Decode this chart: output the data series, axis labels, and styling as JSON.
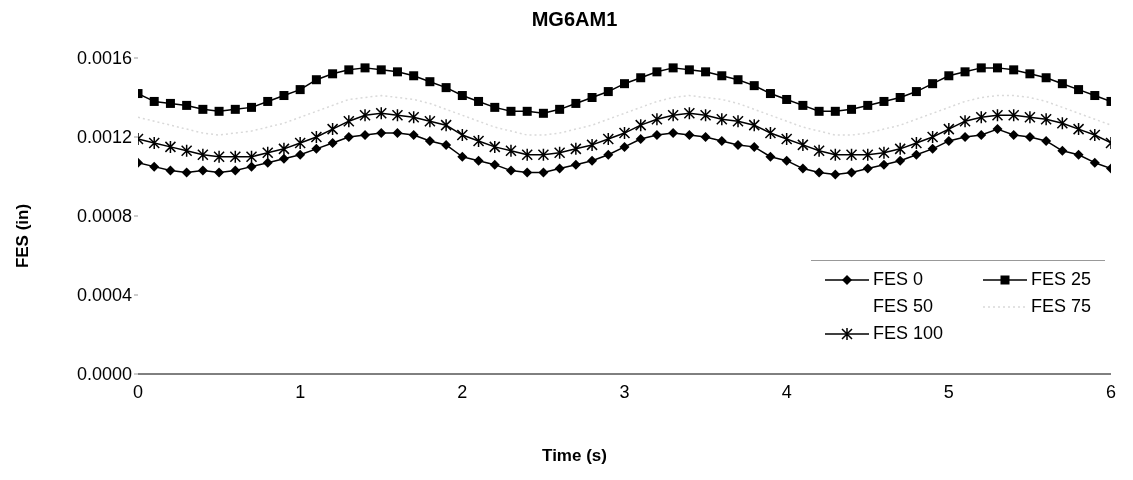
{
  "chart_data": {
    "type": "line",
    "title": "MG6AM1",
    "xlabel": "Time (s)",
    "ylabel": "FES (in)",
    "x": [
      0,
      0.1,
      0.2,
      0.3,
      0.4,
      0.5,
      0.6,
      0.7,
      0.8,
      0.9,
      1,
      1.1,
      1.2,
      1.3,
      1.4,
      1.5,
      1.6,
      1.7,
      1.8,
      1.9,
      2,
      2.1,
      2.2,
      2.3,
      2.4,
      2.5,
      2.6,
      2.7,
      2.8,
      2.9,
      3,
      3.1,
      3.2,
      3.3,
      3.4,
      3.5,
      3.6,
      3.7,
      3.8,
      3.9,
      4,
      4.1,
      4.2,
      4.3,
      4.4,
      4.5,
      4.6,
      4.7,
      4.8,
      4.9,
      5,
      5.1,
      5.2,
      5.3,
      5.4,
      5.5,
      5.6,
      5.7,
      5.8,
      5.9,
      6
    ],
    "xlim": [
      0,
      6
    ],
    "xticks": [
      0,
      1,
      2,
      3,
      4,
      5,
      6
    ],
    "ylim": [
      0,
      0.0016
    ],
    "yticks": [
      {
        "value": 0,
        "label": "0.0000"
      },
      {
        "value": 0.0004,
        "label": "0.0004"
      },
      {
        "value": 0.0008,
        "label": "0.0008"
      },
      {
        "value": 0.0012,
        "label": "0.0012"
      },
      {
        "value": 0.0016,
        "label": "0.0016"
      }
    ],
    "grid": false,
    "legend": "bottom right",
    "line_style": "solid",
    "series": [
      {
        "name": "FES 0",
        "color": "#000000",
        "marker": "diamond",
        "values": [
          0.00107,
          0.00105,
          0.00103,
          0.00102,
          0.00103,
          0.00102,
          0.00103,
          0.00105,
          0.00107,
          0.00109,
          0.00111,
          0.00114,
          0.00117,
          0.0012,
          0.00121,
          0.00122,
          0.00122,
          0.00121,
          0.00118,
          0.00116,
          0.0011,
          0.00108,
          0.00106,
          0.00103,
          0.00102,
          0.00102,
          0.00104,
          0.00106,
          0.00108,
          0.00111,
          0.00115,
          0.00119,
          0.00121,
          0.00122,
          0.00121,
          0.0012,
          0.00118,
          0.00116,
          0.00115,
          0.0011,
          0.00108,
          0.00104,
          0.00102,
          0.00101,
          0.00102,
          0.00104,
          0.00106,
          0.00108,
          0.00111,
          0.00114,
          0.00118,
          0.0012,
          0.00121,
          0.00124,
          0.00121,
          0.0012,
          0.00118,
          0.00113,
          0.00111,
          0.00107,
          0.00104
        ]
      },
      {
        "name": "FES 25",
        "color": "#000000",
        "marker": "square",
        "values": [
          0.00142,
          0.00138,
          0.00137,
          0.00136,
          0.00134,
          0.00133,
          0.00134,
          0.00135,
          0.00138,
          0.00141,
          0.00144,
          0.00149,
          0.00152,
          0.00154,
          0.00155,
          0.00154,
          0.00153,
          0.00151,
          0.00148,
          0.00145,
          0.00141,
          0.00138,
          0.00135,
          0.00133,
          0.00133,
          0.00132,
          0.00134,
          0.00137,
          0.0014,
          0.00143,
          0.00147,
          0.0015,
          0.00153,
          0.00155,
          0.00154,
          0.00153,
          0.00151,
          0.00149,
          0.00146,
          0.00142,
          0.00139,
          0.00136,
          0.00133,
          0.00133,
          0.00134,
          0.00136,
          0.00138,
          0.0014,
          0.00143,
          0.00147,
          0.00151,
          0.00153,
          0.00155,
          0.00155,
          0.00154,
          0.00152,
          0.0015,
          0.00147,
          0.00144,
          0.00141,
          0.00138
        ]
      },
      {
        "name": "FES 50",
        "marker": "none",
        "values": [
          null,
          null,
          null,
          null,
          null,
          null,
          null,
          null,
          null,
          null,
          null,
          null,
          null,
          null,
          null,
          null,
          null,
          null,
          null,
          null,
          null,
          null,
          null,
          null,
          null,
          null,
          null,
          null,
          null,
          null,
          null,
          null,
          null,
          null,
          null,
          null,
          null,
          null,
          null,
          null,
          null,
          null,
          null,
          null,
          null,
          null,
          null,
          null,
          null,
          null,
          null,
          null,
          null,
          null,
          null,
          null,
          null,
          null,
          null,
          null,
          null
        ]
      },
      {
        "name": "FES 75",
        "color": "#d9d9d9",
        "marker": "none",
        "line_style": "dotted",
        "values": [
          0.0013,
          0.00128,
          0.00126,
          0.00124,
          0.00122,
          0.00121,
          0.00122,
          0.00123,
          0.00125,
          0.00127,
          0.0013,
          0.00133,
          0.00136,
          0.00139,
          0.0014,
          0.00141,
          0.0014,
          0.00139,
          0.00137,
          0.00134,
          0.00131,
          0.00128,
          0.00125,
          0.00123,
          0.00121,
          0.00121,
          0.00122,
          0.00124,
          0.00126,
          0.00129,
          0.00132,
          0.00135,
          0.00138,
          0.0014,
          0.00141,
          0.0014,
          0.00139,
          0.00137,
          0.00134,
          0.00131,
          0.00128,
          0.00125,
          0.00123,
          0.00121,
          0.00121,
          0.00122,
          0.00124,
          0.00126,
          0.00129,
          0.00132,
          0.00135,
          0.00138,
          0.0014,
          0.00141,
          0.00141,
          0.0014,
          0.00138,
          0.00135,
          0.00132,
          0.00129,
          0.00126
        ]
      },
      {
        "name": "FES 100",
        "color": "#000000",
        "marker": "cross",
        "values": [
          0.00119,
          0.00117,
          0.00115,
          0.00113,
          0.00111,
          0.0011,
          0.0011,
          0.0011,
          0.00112,
          0.00114,
          0.00117,
          0.0012,
          0.00124,
          0.00128,
          0.00131,
          0.00132,
          0.00131,
          0.0013,
          0.00128,
          0.00126,
          0.00121,
          0.00118,
          0.00115,
          0.00113,
          0.00111,
          0.00111,
          0.00112,
          0.00114,
          0.00116,
          0.00119,
          0.00122,
          0.00126,
          0.00129,
          0.00131,
          0.00132,
          0.00131,
          0.00129,
          0.00128,
          0.00126,
          0.00122,
          0.00119,
          0.00116,
          0.00113,
          0.00111,
          0.00111,
          0.00111,
          0.00112,
          0.00114,
          0.00117,
          0.0012,
          0.00124,
          0.00128,
          0.0013,
          0.00131,
          0.00131,
          0.0013,
          0.00129,
          0.00127,
          0.00124,
          0.00121,
          0.00117
        ]
      }
    ]
  }
}
